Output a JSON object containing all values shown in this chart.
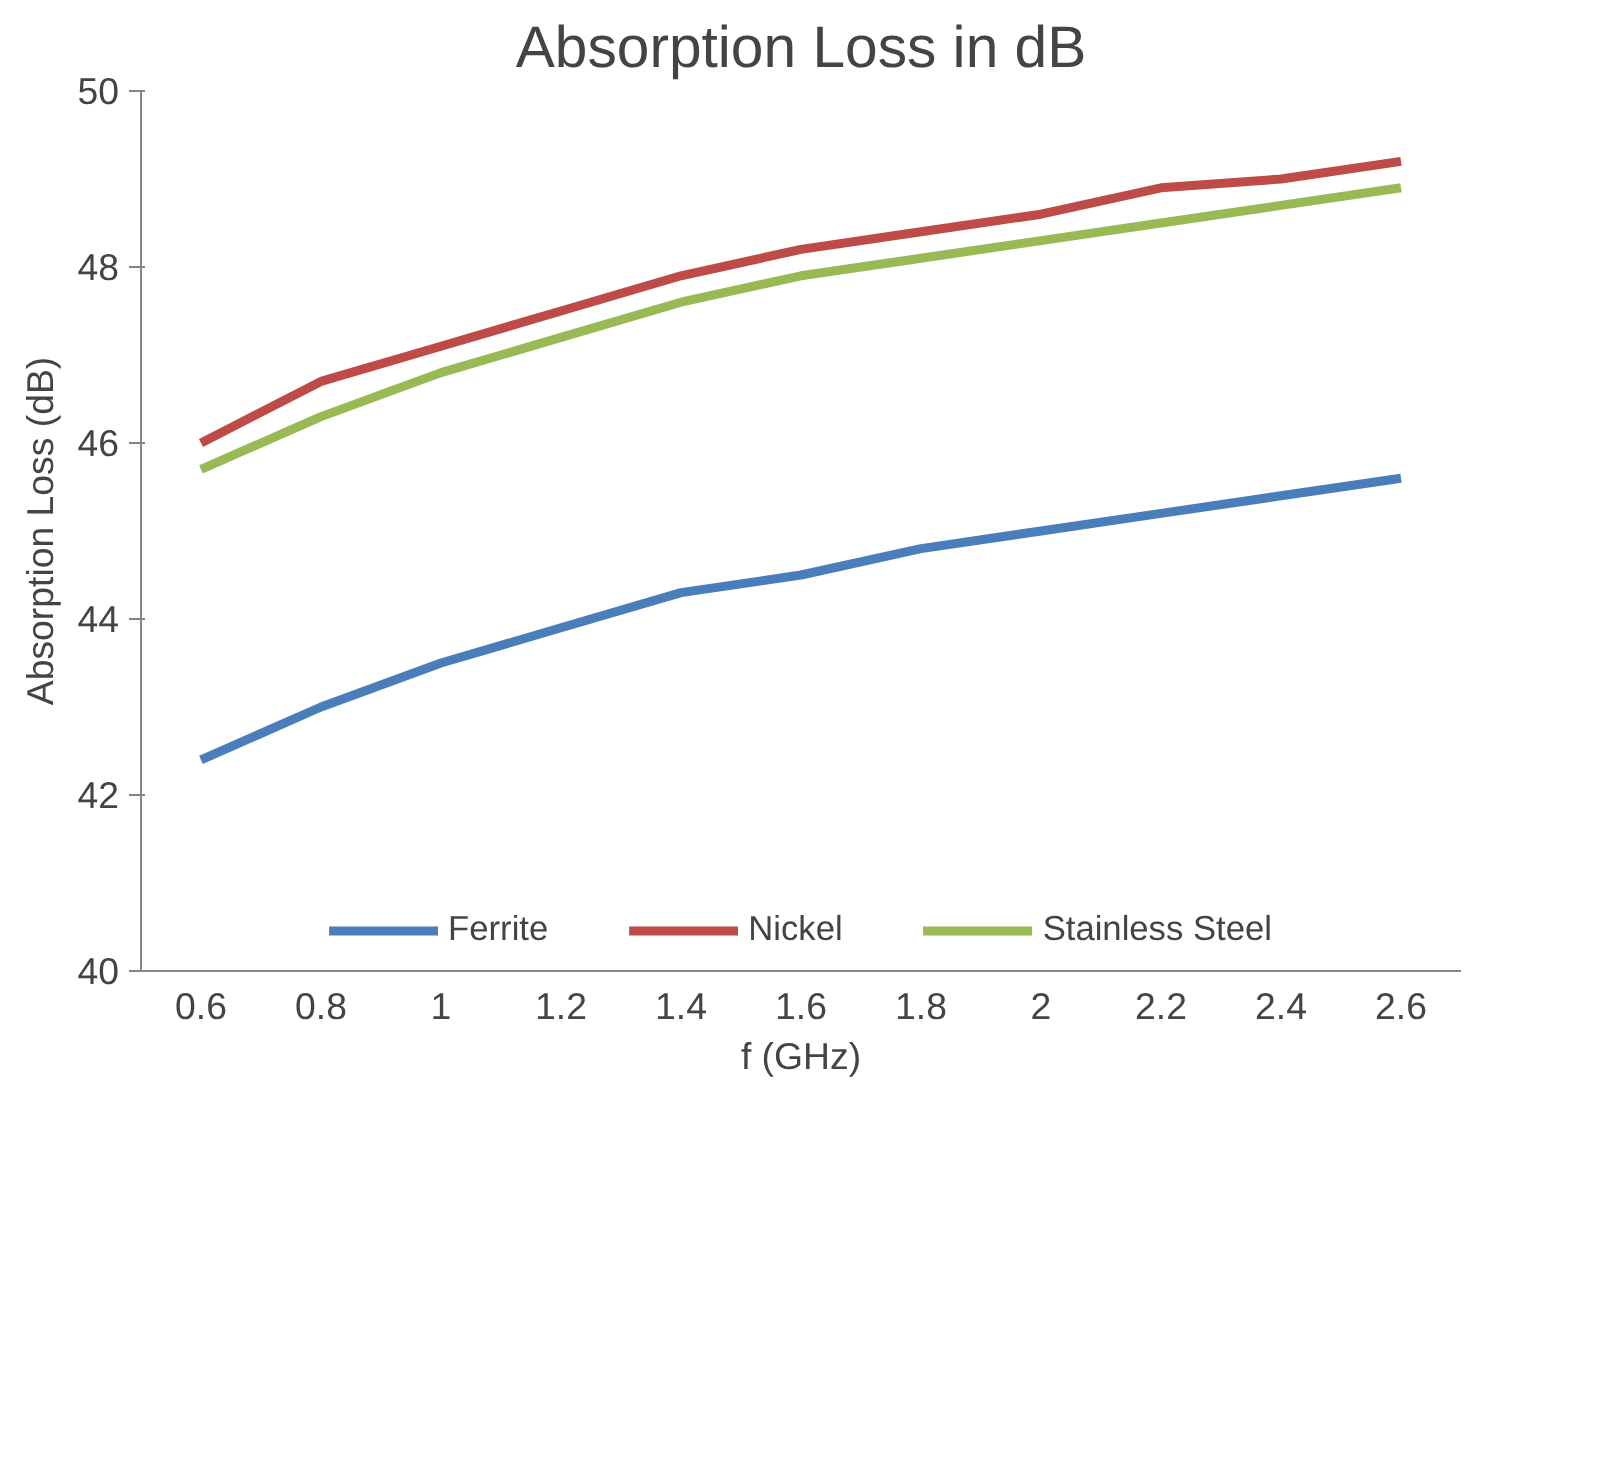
{
  "chart_data": {
    "type": "line",
    "title": "Absorption Loss in dB",
    "xlabel": "f (GHz)",
    "ylabel": "Absorption Loss (dB)",
    "categories": [
      "0.6",
      "0.8",
      "1",
      "1.2",
      "1.4",
      "1.6",
      "1.8",
      "2",
      "2.2",
      "2.4",
      "2.6"
    ],
    "series": [
      {
        "name": "Ferrite",
        "color": "#4a7ebb",
        "values": [
          42.4,
          43.0,
          43.5,
          43.9,
          44.3,
          44.5,
          44.8,
          45.0,
          45.2,
          45.4,
          45.6
        ]
      },
      {
        "name": "Nickel",
        "color": "#be4b48",
        "values": [
          46.0,
          46.7,
          47.1,
          47.5,
          47.9,
          48.2,
          48.4,
          48.6,
          48.9,
          49.0,
          49.2
        ]
      },
      {
        "name": "Stainless Steel",
        "color": "#98b954",
        "values": [
          45.7,
          46.3,
          46.8,
          47.2,
          47.6,
          47.9,
          48.1,
          48.3,
          48.5,
          48.7,
          48.9
        ]
      }
    ],
    "ylim": [
      40,
      50
    ],
    "yticks": [
      40,
      42,
      44,
      46,
      48,
      50
    ],
    "grid": false,
    "legend": "bottom",
    "marker": "none",
    "line_style": "solid"
  }
}
